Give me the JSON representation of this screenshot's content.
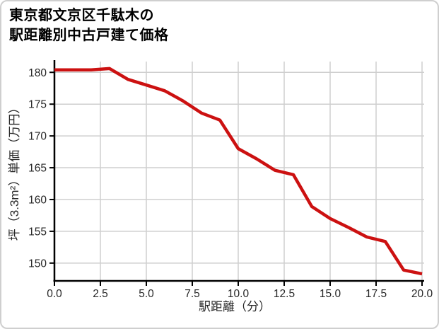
{
  "header": {
    "title_line1": "東京都文京区千駄木の",
    "title_line2": "駅距離別中古戸建て価格"
  },
  "chart_data": {
    "type": "line",
    "title": "東京都文京区千駄木の駅距離別中古戸建て価格",
    "xlabel": "駅距離（分）",
    "ylabel": "坪（3.3m²）単価（万円）",
    "x": [
      0,
      1,
      2,
      3,
      4,
      5,
      6,
      7,
      8,
      9,
      10,
      11,
      12,
      13,
      14,
      15,
      16,
      17,
      18,
      19,
      20
    ],
    "y": [
      180.4,
      180.4,
      180.4,
      180.6,
      178.9,
      178.0,
      177.1,
      175.5,
      173.6,
      172.5,
      168.0,
      166.4,
      164.6,
      163.9,
      158.9,
      157.0,
      155.6,
      154.1,
      153.4,
      148.9,
      148.3
    ],
    "xlim": [
      0,
      20
    ],
    "ylim": [
      147.2,
      181.7
    ],
    "xtick_values": [
      0,
      2.5,
      5,
      7.5,
      10,
      12.5,
      15,
      17.5,
      20
    ],
    "xtick_labels": [
      "0.0",
      "2.5",
      "5.0",
      "7.5",
      "10.0",
      "12.5",
      "15.0",
      "17.5",
      "20.0"
    ],
    "ytick_values": [
      150,
      155,
      160,
      165,
      170,
      175,
      180
    ],
    "ytick_labels": [
      "150",
      "155",
      "160",
      "165",
      "170",
      "175",
      "180"
    ],
    "grid": true,
    "legend": "none",
    "line_color": "#cc1111",
    "grid_color": "#cfcfcf",
    "axis_color": "#000000",
    "tick_label_color": "#262626"
  }
}
